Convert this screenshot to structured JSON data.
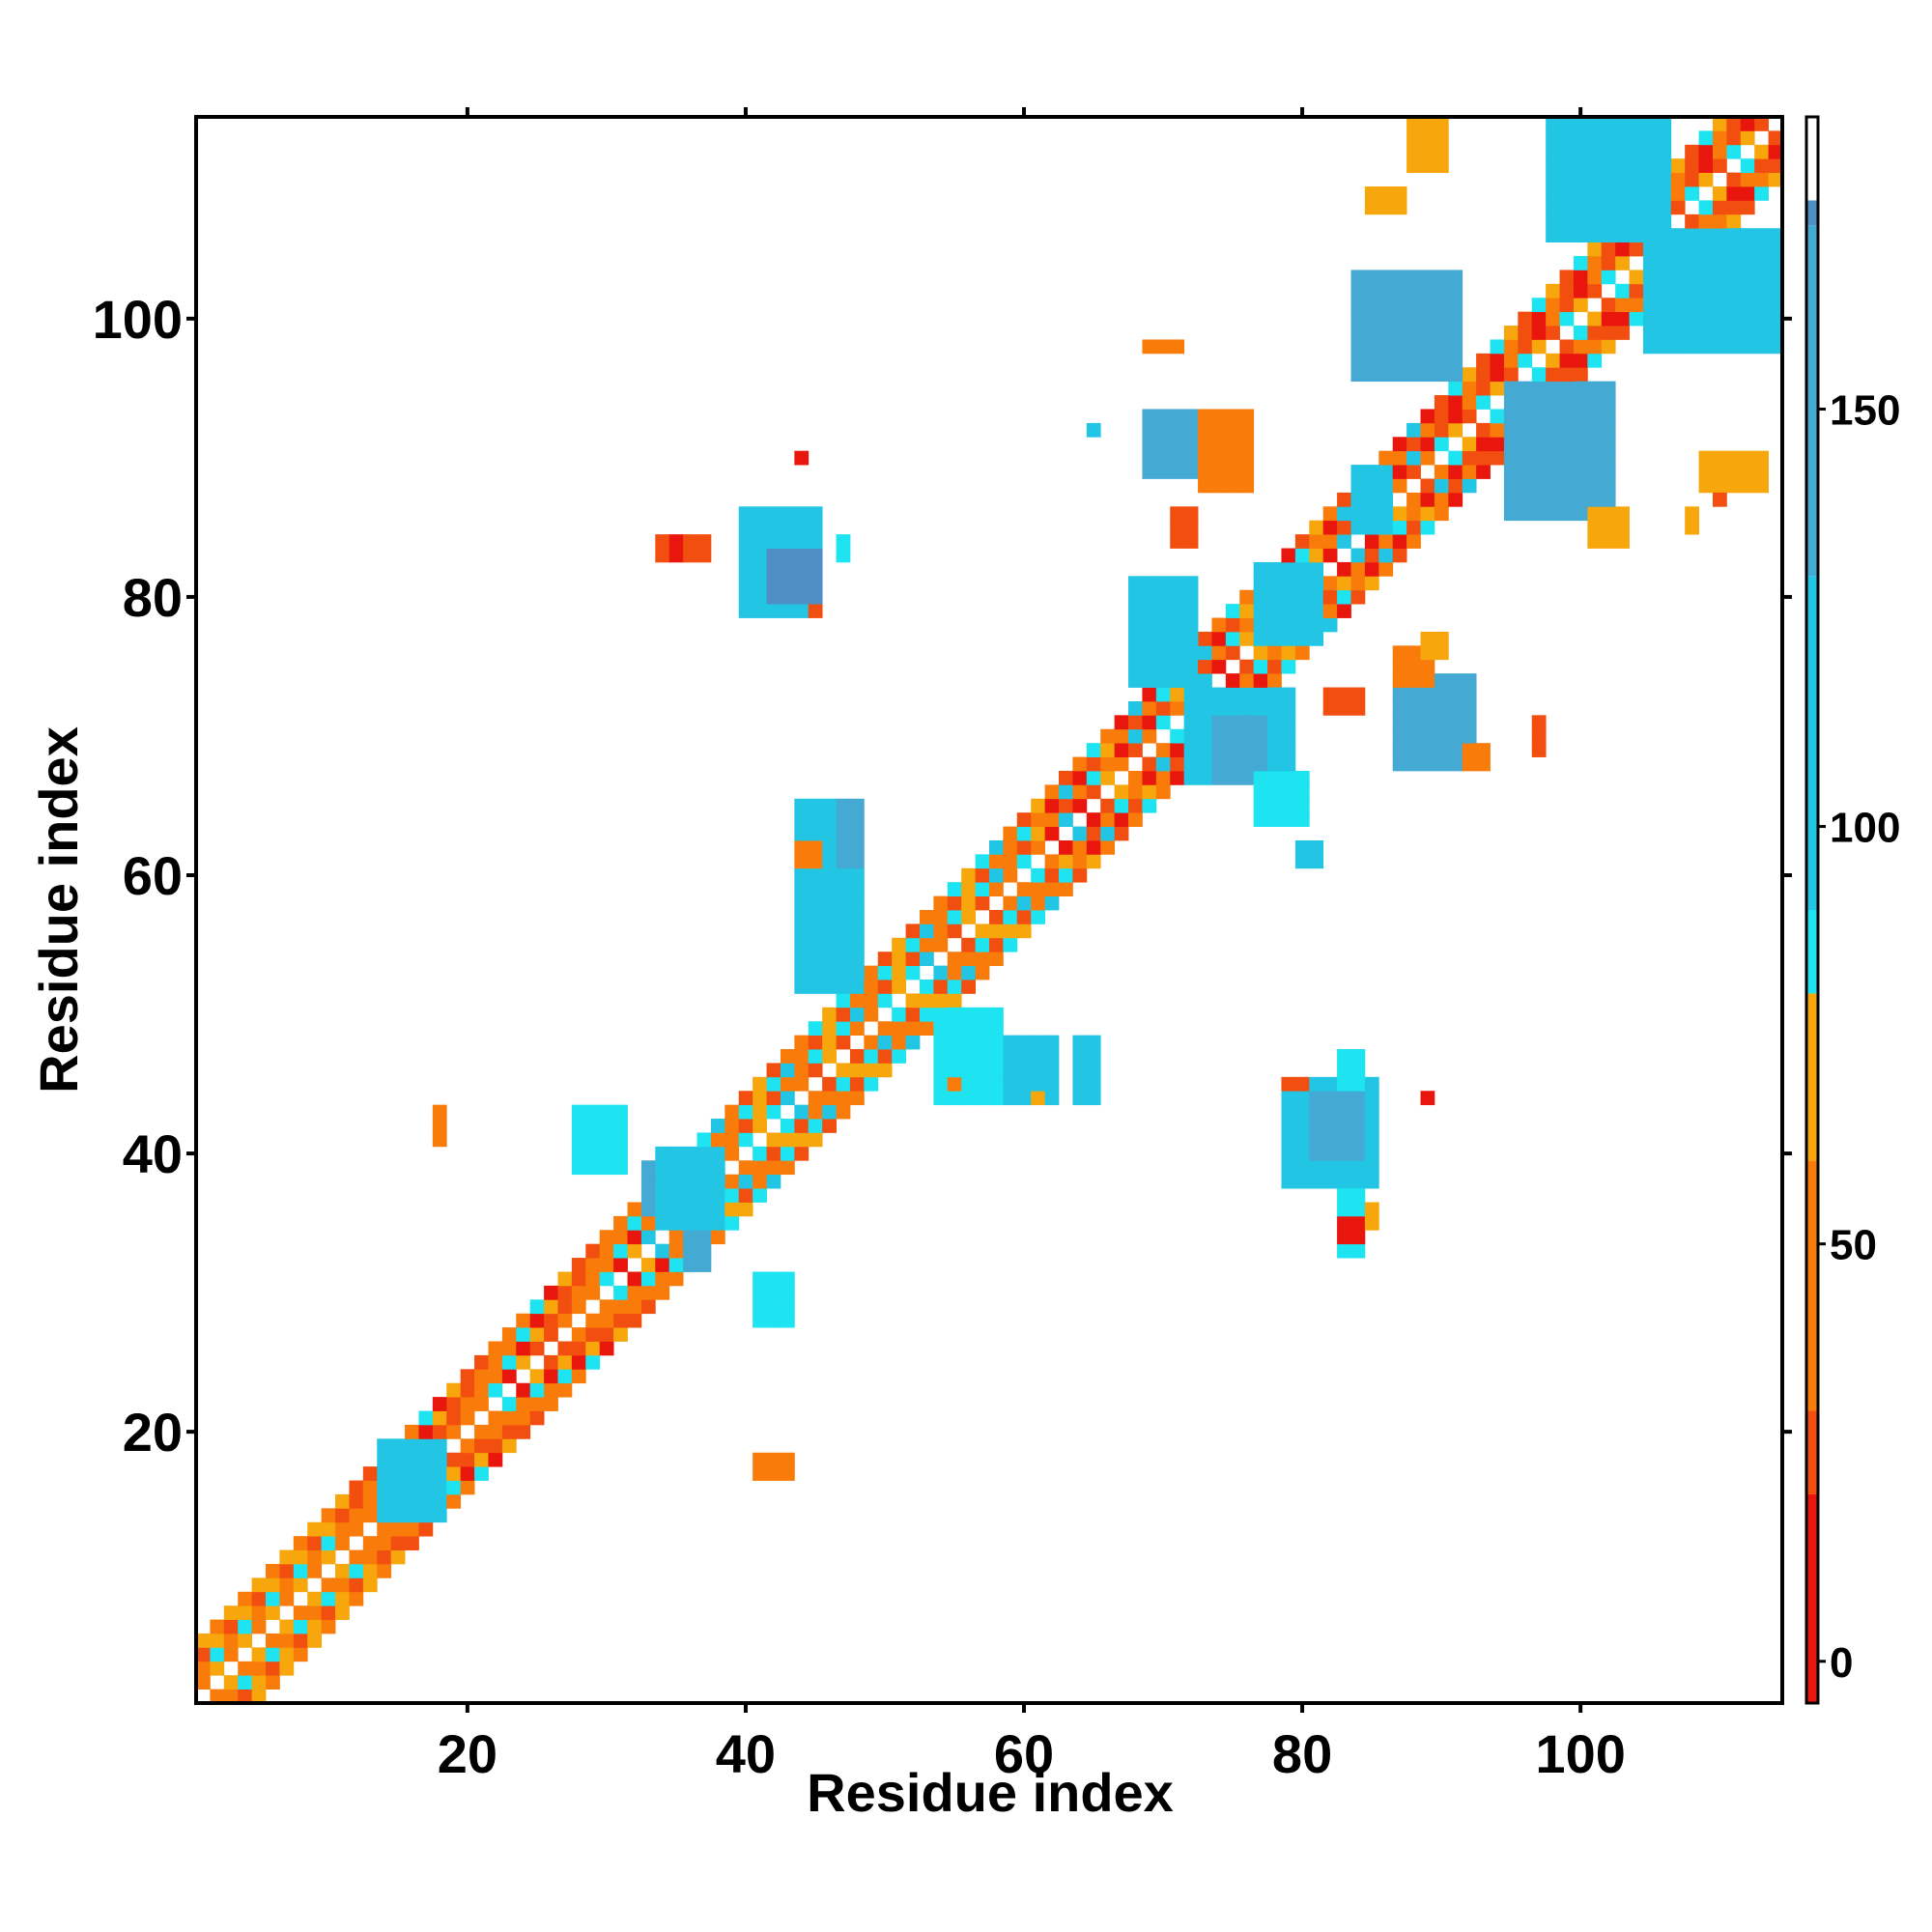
{
  "chart_data": {
    "type": "heatmap",
    "title": "",
    "xlabel": "Residue index",
    "ylabel": "Residue index",
    "xlim": [
      1,
      114
    ],
    "ylim": [
      1,
      114
    ],
    "x_ticks": [
      20,
      40,
      60,
      80,
      100
    ],
    "y_ticks": [
      20,
      40,
      60,
      80,
      100
    ],
    "grid": false,
    "legend": "colorbar-right",
    "colorbar": {
      "range": [
        -5,
        185
      ],
      "ticks": [
        0,
        50,
        100,
        150
      ],
      "bands": [
        {
          "from": -5,
          "to": 20,
          "color": "#e8160c"
        },
        {
          "from": 20,
          "to": 30,
          "color": "#f24e10"
        },
        {
          "from": 30,
          "to": 60,
          "color": "#f97c0b"
        },
        {
          "from": 60,
          "to": 80,
          "color": "#f7a70b"
        },
        {
          "from": 80,
          "to": 90,
          "color": "#1ee3f0"
        },
        {
          "from": 90,
          "to": 130,
          "color": "#22c6e4"
        },
        {
          "from": 130,
          "to": 172,
          "color": "#44aad4"
        },
        {
          "from": 172,
          "to": 175,
          "color": "#4f8fc6"
        },
        {
          "from": 175,
          "to": 185,
          "color": "#ffffff"
        }
      ]
    },
    "cell_colors": {
      "r": "#e8160c",
      "o": "#f24e10",
      "a": "#f97c0b",
      "y": "#f7a70b",
      "c": "#1ee3f0",
      "t": "#22c6e4",
      "s": "#44aad4",
      "b": "#4f8fc6"
    },
    "diagonal_segments": [
      {
        "from": 1,
        "to": 12,
        "pattern": "oaaycy"
      },
      {
        "from": 12,
        "to": 33,
        "pattern": "oaroayac"
      },
      {
        "from": 33,
        "to": 60,
        "pattern": "ocaytcoaya"
      },
      {
        "from": 60,
        "to": 90,
        "pattern": "oraytcarao"
      },
      {
        "from": 90,
        "to": 114,
        "pattern": "rooarcoay"
      }
    ],
    "off_diagonal_blocks": [
      {
        "x": [
          14,
          18
        ],
        "y": [
          14,
          19
        ],
        "v": "t"
      },
      {
        "x": [
          18,
          18
        ],
        "y": [
          41,
          43
        ],
        "v": "a"
      },
      {
        "x": [
          41,
          43
        ],
        "y": [
          17,
          18
        ],
        "v": "a"
      },
      {
        "x": [
          28,
          31
        ],
        "y": [
          39,
          43
        ],
        "v": "c"
      },
      {
        "x": [
          41,
          43
        ],
        "y": [
          28,
          31
        ],
        "v": "c"
      },
      {
        "x": [
          36,
          37
        ],
        "y": [
          32,
          36
        ],
        "v": "s"
      },
      {
        "x": [
          33,
          36
        ],
        "y": [
          36,
          39
        ],
        "v": "s"
      },
      {
        "x": [
          34,
          38
        ],
        "y": [
          35,
          40
        ],
        "v": "t"
      },
      {
        "x": [
          40,
          45
        ],
        "y": [
          79,
          86
        ],
        "v": "t"
      },
      {
        "x": [
          42,
          45
        ],
        "y": [
          80,
          83
        ],
        "v": "b"
      },
      {
        "x": [
          34,
          37
        ],
        "y": [
          83,
          84
        ],
        "v": "o"
      },
      {
        "x": [
          35,
          35
        ],
        "y": [
          83,
          84
        ],
        "v": "r"
      },
      {
        "x": [
          44,
          44
        ],
        "y": [
          90,
          90
        ],
        "v": "r"
      },
      {
        "x": [
          45,
          45
        ],
        "y": [
          79,
          79
        ],
        "v": "o"
      },
      {
        "x": [
          47,
          47
        ],
        "y": [
          83,
          84
        ],
        "v": "c"
      },
      {
        "x": [
          44,
          48
        ],
        "y": [
          52,
          65
        ],
        "v": "t"
      },
      {
        "x": [
          44,
          45
        ],
        "y": [
          61,
          62
        ],
        "v": "a"
      },
      {
        "x": [
          47,
          48
        ],
        "y": [
          61,
          65
        ],
        "v": "s"
      },
      {
        "x": [
          54,
          58
        ],
        "y": [
          44,
          50
        ],
        "v": "c"
      },
      {
        "x": [
          59,
          62
        ],
        "y": [
          44,
          48
        ],
        "v": "t"
      },
      {
        "x": [
          64,
          65
        ],
        "y": [
          44,
          48
        ],
        "v": "t"
      },
      {
        "x": [
          55,
          55
        ],
        "y": [
          45,
          45
        ],
        "v": "a"
      },
      {
        "x": [
          61,
          61
        ],
        "y": [
          44,
          44
        ],
        "v": "y"
      },
      {
        "x": [
          68,
          72
        ],
        "y": [
          74,
          81
        ],
        "v": "t"
      },
      {
        "x": [
          72,
          79
        ],
        "y": [
          67,
          73
        ],
        "v": "t"
      },
      {
        "x": [
          74,
          77
        ],
        "y": [
          67,
          71
        ],
        "v": "s"
      },
      {
        "x": [
          77,
          80
        ],
        "y": [
          64,
          67
        ],
        "v": "c"
      },
      {
        "x": [
          80,
          81
        ],
        "y": [
          61,
          62
        ],
        "v": "t"
      },
      {
        "x": [
          77,
          81
        ],
        "y": [
          77,
          82
        ],
        "v": "t"
      },
      {
        "x": [
          79,
          85
        ],
        "y": [
          38,
          45
        ],
        "v": "t"
      },
      {
        "x": [
          81,
          84
        ],
        "y": [
          40,
          44
        ],
        "v": "s"
      },
      {
        "x": [
          83,
          84
        ],
        "y": [
          45,
          47
        ],
        "v": "c"
      },
      {
        "x": [
          79,
          80
        ],
        "y": [
          45,
          45
        ],
        "v": "o"
      },
      {
        "x": [
          83,
          84
        ],
        "y": [
          33,
          37
        ],
        "v": "c"
      },
      {
        "x": [
          83,
          84
        ],
        "y": [
          34,
          35
        ],
        "v": "r"
      },
      {
        "x": [
          85,
          85
        ],
        "y": [
          35,
          36
        ],
        "v": "y"
      },
      {
        "x": [
          89,
          89
        ],
        "y": [
          44,
          44
        ],
        "v": "r"
      },
      {
        "x": [
          87,
          92
        ],
        "y": [
          68,
          74
        ],
        "v": "s"
      },
      {
        "x": [
          87,
          89
        ],
        "y": [
          74,
          76
        ],
        "v": "a"
      },
      {
        "x": [
          89,
          90
        ],
        "y": [
          76,
          77
        ],
        "v": "y"
      },
      {
        "x": [
          92,
          93
        ],
        "y": [
          68,
          69
        ],
        "v": "a"
      },
      {
        "x": [
          97,
          97
        ],
        "y": [
          69,
          71
        ],
        "v": "o"
      },
      {
        "x": [
          82,
          84
        ],
        "y": [
          72,
          73
        ],
        "v": "o"
      },
      {
        "x": [
          69,
          73
        ],
        "y": [
          89,
          93
        ],
        "v": "s"
      },
      {
        "x": [
          73,
          76
        ],
        "y": [
          88,
          93
        ],
        "v": "a"
      },
      {
        "x": [
          69,
          71
        ],
        "y": [
          98,
          98
        ],
        "v": "a"
      },
      {
        "x": [
          65,
          65
        ],
        "y": [
          92,
          92
        ],
        "v": "t"
      },
      {
        "x": [
          71,
          72
        ],
        "y": [
          84,
          86
        ],
        "v": "o"
      },
      {
        "x": [
          84,
          91
        ],
        "y": [
          96,
          103
        ],
        "v": "s"
      },
      {
        "x": [
          84,
          86
        ],
        "y": [
          85,
          89
        ],
        "v": "t"
      },
      {
        "x": [
          85,
          87
        ],
        "y": [
          108,
          109
        ],
        "v": "y"
      },
      {
        "x": [
          88,
          90
        ],
        "y": [
          111,
          114
        ],
        "v": "y"
      },
      {
        "x": [
          95,
          102
        ],
        "y": [
          86,
          95
        ],
        "v": "s"
      },
      {
        "x": [
          101,
          103
        ],
        "y": [
          84,
          86
        ],
        "v": "y"
      },
      {
        "x": [
          98,
          106
        ],
        "y": [
          106,
          114
        ],
        "v": "t"
      },
      {
        "x": [
          105,
          114
        ],
        "y": [
          98,
          106
        ],
        "v": "t"
      },
      {
        "x": [
          109,
          113
        ],
        "y": [
          88,
          90
        ],
        "v": "y"
      },
      {
        "x": [
          108,
          108
        ],
        "y": [
          85,
          86
        ],
        "v": "y"
      },
      {
        "x": [
          110,
          110
        ],
        "y": [
          87,
          87
        ],
        "v": "o"
      }
    ]
  }
}
